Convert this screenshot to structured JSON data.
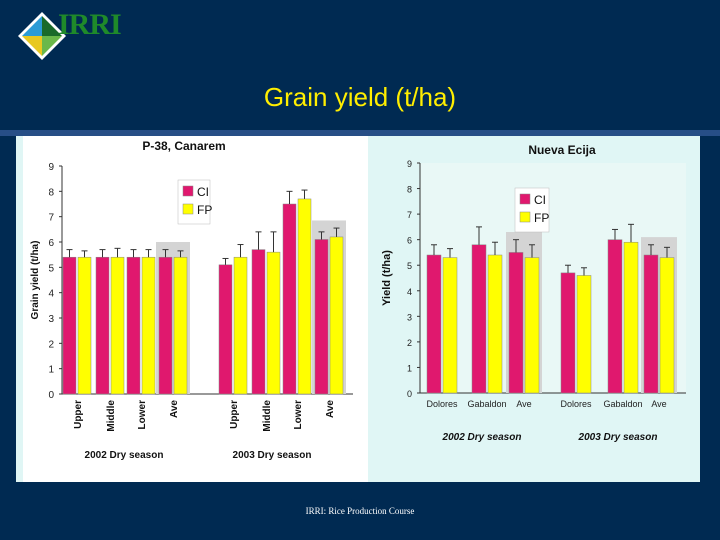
{
  "header": {
    "logo_text": "IRRI",
    "title": "Grain yield (t/ha)"
  },
  "footer": {
    "text": "IRRI: Rice Production Course"
  },
  "colors": {
    "background": "#002a52",
    "title": "#ffee00",
    "ci": "#e0186e",
    "fp": "#ffff00",
    "panel": "#e0f6f5"
  },
  "chart_data": [
    {
      "type": "bar",
      "title": "P-38, Canarem",
      "ylabel": "Grain yield (t/ha)",
      "xlabel": "",
      "ylim": [
        0,
        9
      ],
      "yticks": [
        0,
        1,
        2,
        3,
        4,
        5,
        6,
        7,
        8,
        9
      ],
      "categories": [
        "Upper",
        "Middle",
        "Lower",
        "Ave",
        "Upper",
        "Middle",
        "Lower",
        "Ave"
      ],
      "groups": [
        {
          "label": "2002 Dry season",
          "categories": [
            "Upper",
            "Middle",
            "Lower",
            "Ave"
          ]
        },
        {
          "label": "2003 Dry season",
          "categories": [
            "Upper",
            "Middle",
            "Lower",
            "Ave"
          ]
        }
      ],
      "series": [
        {
          "name": "CI",
          "color": "#e0186e",
          "values": [
            5.4,
            5.4,
            5.4,
            5.4,
            5.1,
            5.7,
            7.5,
            6.1
          ],
          "errors": [
            0.3,
            0.3,
            0.3,
            0.3,
            0.25,
            0.7,
            0.5,
            0.3
          ]
        },
        {
          "name": "FP",
          "color": "#ffff00",
          "values": [
            5.4,
            5.4,
            5.4,
            5.4,
            5.4,
            5.6,
            7.7,
            6.2
          ],
          "errors": [
            0.25,
            0.35,
            0.3,
            0.25,
            0.5,
            0.8,
            0.35,
            0.35
          ]
        }
      ],
      "legend": "top-center"
    },
    {
      "type": "bar",
      "title": "Nueva Ecija",
      "ylabel": "Yield (t/ha)",
      "xlabel": "",
      "ylim": [
        0,
        9
      ],
      "yticks": [
        0,
        1,
        2,
        3,
        4,
        5,
        6,
        7,
        8,
        9
      ],
      "categories": [
        "Dolores",
        "Gabaldon",
        "Ave",
        "Dolores",
        "Gabaldon",
        "Ave"
      ],
      "groups": [
        {
          "label": "2002 Dry season",
          "categories": [
            "Dolores",
            "Gabaldon",
            "Ave"
          ]
        },
        {
          "label": "2003 Dry season",
          "categories": [
            "Dolores",
            "Gabaldon",
            "Ave"
          ]
        }
      ],
      "series": [
        {
          "name": "CI",
          "color": "#e0186e",
          "values": [
            5.4,
            5.8,
            5.5,
            4.7,
            6.0,
            5.4
          ],
          "errors": [
            0.4,
            0.7,
            0.5,
            0.3,
            0.4,
            0.4
          ]
        },
        {
          "name": "FP",
          "color": "#ffff00",
          "values": [
            5.3,
            5.4,
            5.3,
            4.6,
            5.9,
            5.3
          ],
          "errors": [
            0.35,
            0.5,
            0.5,
            0.3,
            0.7,
            0.4
          ]
        }
      ],
      "legend": "top-center"
    }
  ]
}
